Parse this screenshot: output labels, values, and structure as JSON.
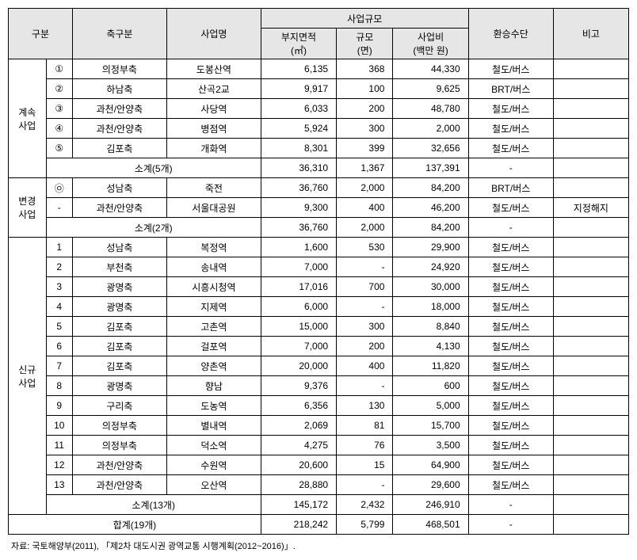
{
  "headers": {
    "category": "구분",
    "axis": "축구분",
    "project": "사업명",
    "scale_group": "사업규모",
    "area": "부지면적\n(㎡)",
    "scale": "규모\n(면)",
    "cost": "사업비\n(백만 원)",
    "transfer": "환승수단",
    "note": "비고"
  },
  "groups": [
    {
      "label": "계속\n사업",
      "rows": [
        {
          "num": "①",
          "axis": "의정부축",
          "proj": "도봉산역",
          "area": "6,135",
          "scale": "368",
          "cost": "44,330",
          "trans": "철도/버스",
          "note": ""
        },
        {
          "num": "②",
          "axis": "하남축",
          "proj": "산곡2교",
          "area": "9,917",
          "scale": "100",
          "cost": "9,625",
          "trans": "BRT/버스",
          "note": ""
        },
        {
          "num": "③",
          "axis": "과천/안양축",
          "proj": "사당역",
          "area": "6,033",
          "scale": "200",
          "cost": "48,780",
          "trans": "철도/버스",
          "note": ""
        },
        {
          "num": "④",
          "axis": "과천/안양축",
          "proj": "병점역",
          "area": "5,924",
          "scale": "300",
          "cost": "2,000",
          "trans": "철도/버스",
          "note": ""
        },
        {
          "num": "⑤",
          "axis": "김포축",
          "proj": "개화역",
          "area": "8,301",
          "scale": "399",
          "cost": "32,656",
          "trans": "철도/버스",
          "note": ""
        }
      ],
      "subtotal": {
        "label": "소계(5개)",
        "area": "36,310",
        "scale": "1,367",
        "cost": "137,391",
        "trans": "-",
        "note": ""
      }
    },
    {
      "label": "변경\n사업",
      "rows": [
        {
          "num": "㉧",
          "axis": "성남축",
          "proj": "죽전",
          "area": "36,760",
          "scale": "2,000",
          "cost": "84,200",
          "trans": "BRT/버스",
          "note": ""
        },
        {
          "num": "-",
          "axis": "과천/안양축",
          "proj": "서울대공원",
          "area": "9,300",
          "scale": "400",
          "cost": "46,200",
          "trans": "철도/버스",
          "note": "지정해지"
        }
      ],
      "subtotal": {
        "label": "소계(2개)",
        "area": "36,760",
        "scale": "2,000",
        "cost": "84,200",
        "trans": "-",
        "note": ""
      }
    },
    {
      "label": "신규\n사업",
      "rows": [
        {
          "num": "1",
          "axis": "성남축",
          "proj": "복정역",
          "area": "1,600",
          "scale": "530",
          "cost": "29,900",
          "trans": "철도/버스",
          "note": ""
        },
        {
          "num": "2",
          "axis": "부천축",
          "proj": "송내역",
          "area": "7,000",
          "scale": "-",
          "cost": "24,920",
          "trans": "철도/버스",
          "note": ""
        },
        {
          "num": "3",
          "axis": "광명축",
          "proj": "시흥시청역",
          "area": "17,016",
          "scale": "700",
          "cost": "30,000",
          "trans": "철도/버스",
          "note": ""
        },
        {
          "num": "4",
          "axis": "광명축",
          "proj": "지제역",
          "area": "6,000",
          "scale": "-",
          "cost": "18,000",
          "trans": "철도/버스",
          "note": ""
        },
        {
          "num": "5",
          "axis": "김포축",
          "proj": "고촌역",
          "area": "15,000",
          "scale": "300",
          "cost": "8,840",
          "trans": "철도/버스",
          "note": ""
        },
        {
          "num": "6",
          "axis": "김포축",
          "proj": "걸포역",
          "area": "7,000",
          "scale": "200",
          "cost": "4,130",
          "trans": "철도/버스",
          "note": ""
        },
        {
          "num": "7",
          "axis": "김포축",
          "proj": "양촌역",
          "area": "20,000",
          "scale": "400",
          "cost": "11,820",
          "trans": "철도/버스",
          "note": ""
        },
        {
          "num": "8",
          "axis": "광명축",
          "proj": "향남",
          "area": "9,376",
          "scale": "-",
          "cost": "600",
          "trans": "철도/버스",
          "note": ""
        },
        {
          "num": "9",
          "axis": "구리축",
          "proj": "도농역",
          "area": "6,356",
          "scale": "130",
          "cost": "5,000",
          "trans": "철도/버스",
          "note": ""
        },
        {
          "num": "10",
          "axis": "의정부축",
          "proj": "별내역",
          "area": "2,069",
          "scale": "81",
          "cost": "15,700",
          "trans": "철도/버스",
          "note": ""
        },
        {
          "num": "11",
          "axis": "의정부축",
          "proj": "덕소역",
          "area": "4,275",
          "scale": "76",
          "cost": "3,500",
          "trans": "철도/버스",
          "note": ""
        },
        {
          "num": "12",
          "axis": "과천/안양축",
          "proj": "수원역",
          "area": "20,600",
          "scale": "15",
          "cost": "64,900",
          "trans": "철도/버스",
          "note": ""
        },
        {
          "num": "13",
          "axis": "과천/안양축",
          "proj": "오산역",
          "area": "28,880",
          "scale": "-",
          "cost": "29,600",
          "trans": "철도/버스",
          "note": ""
        }
      ],
      "subtotal": {
        "label": "소계(13개)",
        "area": "145,172",
        "scale": "2,432",
        "cost": "246,910",
        "trans": "-",
        "note": ""
      }
    }
  ],
  "total": {
    "label": "합계(19개)",
    "area": "218,242",
    "scale": "5,799",
    "cost": "468,501",
    "trans": "-",
    "note": ""
  },
  "footnote": "자료: 국토해양부(2011), 「제2차 대도시권 광역교통 시행계획(2012~2016)」."
}
